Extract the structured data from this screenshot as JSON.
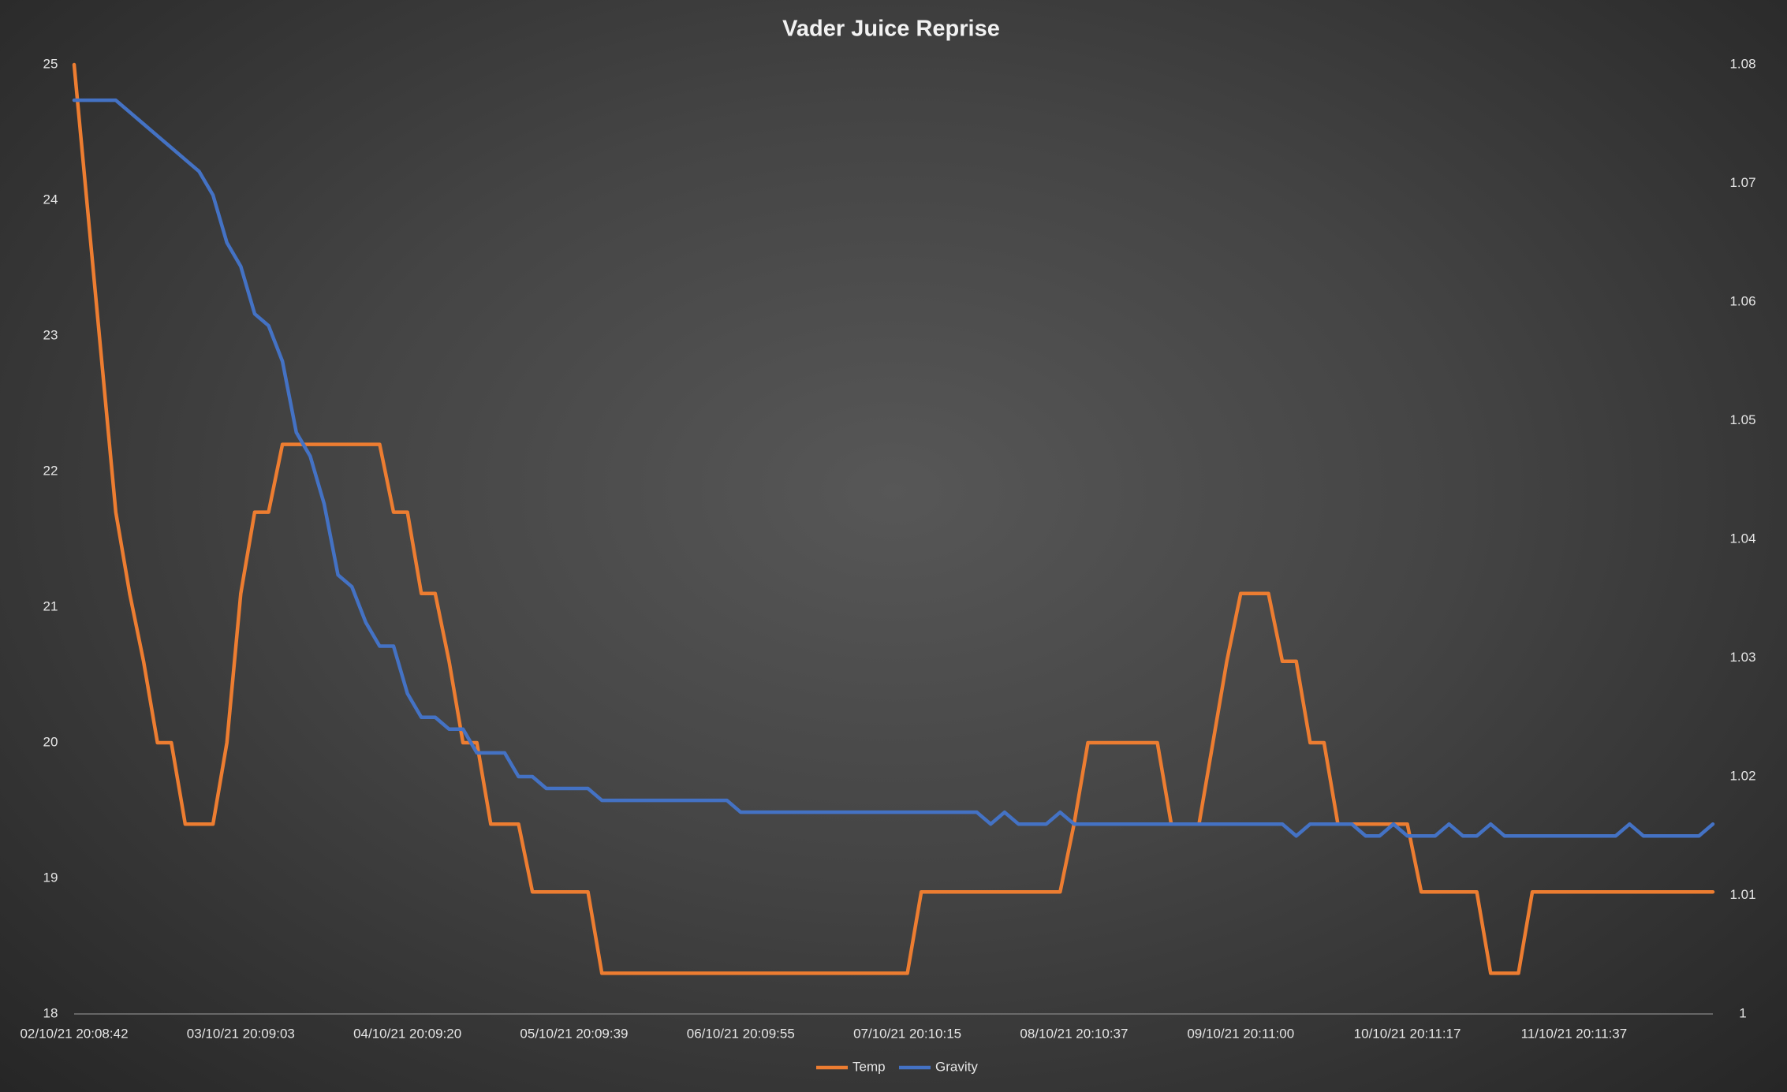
{
  "chart_data": {
    "type": "line",
    "title": "Vader Juice Reprise",
    "categories": [
      "02/10/21 20:08:42",
      null,
      null,
      null,
      null,
      null,
      null,
      null,
      null,
      null,
      null,
      null,
      "03/10/21 20:09:03",
      null,
      null,
      null,
      null,
      null,
      null,
      null,
      null,
      null,
      null,
      null,
      "04/10/21 20:09:20",
      null,
      null,
      null,
      null,
      null,
      null,
      null,
      null,
      null,
      null,
      null,
      "05/10/21 20:09:39",
      null,
      null,
      null,
      null,
      null,
      null,
      null,
      null,
      null,
      null,
      null,
      "06/10/21 20:09:55",
      null,
      null,
      null,
      null,
      null,
      null,
      null,
      null,
      null,
      null,
      null,
      "07/10/21 20:10:15",
      null,
      null,
      null,
      null,
      null,
      null,
      null,
      null,
      null,
      null,
      null,
      "08/10/21 20:10:37",
      null,
      null,
      null,
      null,
      null,
      null,
      null,
      null,
      null,
      null,
      null,
      "09/10/21 20:11:00",
      null,
      null,
      null,
      null,
      null,
      null,
      null,
      null,
      null,
      null,
      null,
      "10/10/21 20:11:17",
      null,
      null,
      null,
      null,
      null,
      null,
      null,
      null,
      null,
      null,
      null,
      "11/10/21 20:11:37",
      null,
      null,
      null,
      null,
      null,
      null,
      null,
      null,
      null,
      null
    ],
    "series": [
      {
        "name": "Temp",
        "color": "#ed7d31",
        "values": [
          25,
          23.9,
          22.8,
          21.7,
          21.1,
          20.6,
          20,
          20,
          19.4,
          19.4,
          19.4,
          20,
          21.1,
          21.7,
          21.7,
          22.2,
          22.2,
          22.2,
          22.2,
          22.2,
          22.2,
          22.2,
          22.2,
          21.7,
          21.7,
          21.1,
          21.1,
          20.6,
          20,
          20,
          19.4,
          19.4,
          19.4,
          18.9,
          18.9,
          18.9,
          18.9,
          18.9,
          18.3,
          18.3,
          18.3,
          18.3,
          18.3,
          18.3,
          18.3,
          18.3,
          18.3,
          18.3,
          18.3,
          18.3,
          18.3,
          18.3,
          18.3,
          18.3,
          18.3,
          18.3,
          18.3,
          18.3,
          18.3,
          18.3,
          18.3,
          18.9,
          18.9,
          18.9,
          18.9,
          18.9,
          18.9,
          18.9,
          18.9,
          18.9,
          18.9,
          18.9,
          19.4,
          20,
          20,
          20,
          20,
          20,
          20,
          19.4,
          19.4,
          19.4,
          20,
          20.6,
          21.1,
          21.1,
          21.1,
          20.6,
          20.6,
          20,
          20,
          19.4,
          19.4,
          19.4,
          19.4,
          19.4,
          19.4,
          18.9,
          18.9,
          18.9,
          18.9,
          18.9,
          18.3,
          18.3,
          18.3,
          18.9,
          18.9,
          18.9,
          18.9,
          18.9,
          18.9,
          18.9,
          18.9,
          18.9,
          18.9,
          18.9,
          18.9,
          18.9,
          18.9
        ]
      },
      {
        "name": "Gravity",
        "color": "#4472c4",
        "axis": "y2",
        "values": [
          1.077,
          1.077,
          1.077,
          1.077,
          1.076,
          1.075,
          1.074,
          1.073,
          1.072,
          1.071,
          1.069,
          1.065,
          1.063,
          1.059,
          1.058,
          1.055,
          1.049,
          1.047,
          1.043,
          1.037,
          1.036,
          1.033,
          1.031,
          1.031,
          1.027,
          1.025,
          1.025,
          1.024,
          1.024,
          1.022,
          1.022,
          1.022,
          1.02,
          1.02,
          1.019,
          1.019,
          1.019,
          1.019,
          1.018,
          1.018,
          1.018,
          1.018,
          1.018,
          1.018,
          1.018,
          1.018,
          1.018,
          1.018,
          1.017,
          1.017,
          1.017,
          1.017,
          1.017,
          1.017,
          1.017,
          1.017,
          1.017,
          1.017,
          1.017,
          1.017,
          1.017,
          1.017,
          1.017,
          1.017,
          1.017,
          1.017,
          1.016,
          1.017,
          1.016,
          1.016,
          1.016,
          1.017,
          1.016,
          1.016,
          1.016,
          1.016,
          1.016,
          1.016,
          1.016,
          1.016,
          1.016,
          1.016,
          1.016,
          1.016,
          1.016,
          1.016,
          1.016,
          1.016,
          1.015,
          1.016,
          1.016,
          1.016,
          1.016,
          1.015,
          1.015,
          1.016,
          1.015,
          1.015,
          1.015,
          1.016,
          1.015,
          1.015,
          1.016,
          1.015,
          1.015,
          1.015,
          1.015,
          1.015,
          1.015,
          1.015,
          1.015,
          1.015,
          1.016,
          1.015,
          1.015,
          1.015,
          1.015,
          1.015,
          1.016
        ]
      }
    ],
    "ylim": [
      18,
      25
    ],
    "yticks": [
      18,
      19,
      20,
      21,
      22,
      23,
      24,
      25
    ],
    "y2lim": [
      1,
      1.08
    ],
    "y2ticks": [
      1,
      1.01,
      1.02,
      1.03,
      1.04,
      1.05,
      1.06,
      1.07,
      1.08
    ],
    "grid": false,
    "legend": "bottom"
  }
}
